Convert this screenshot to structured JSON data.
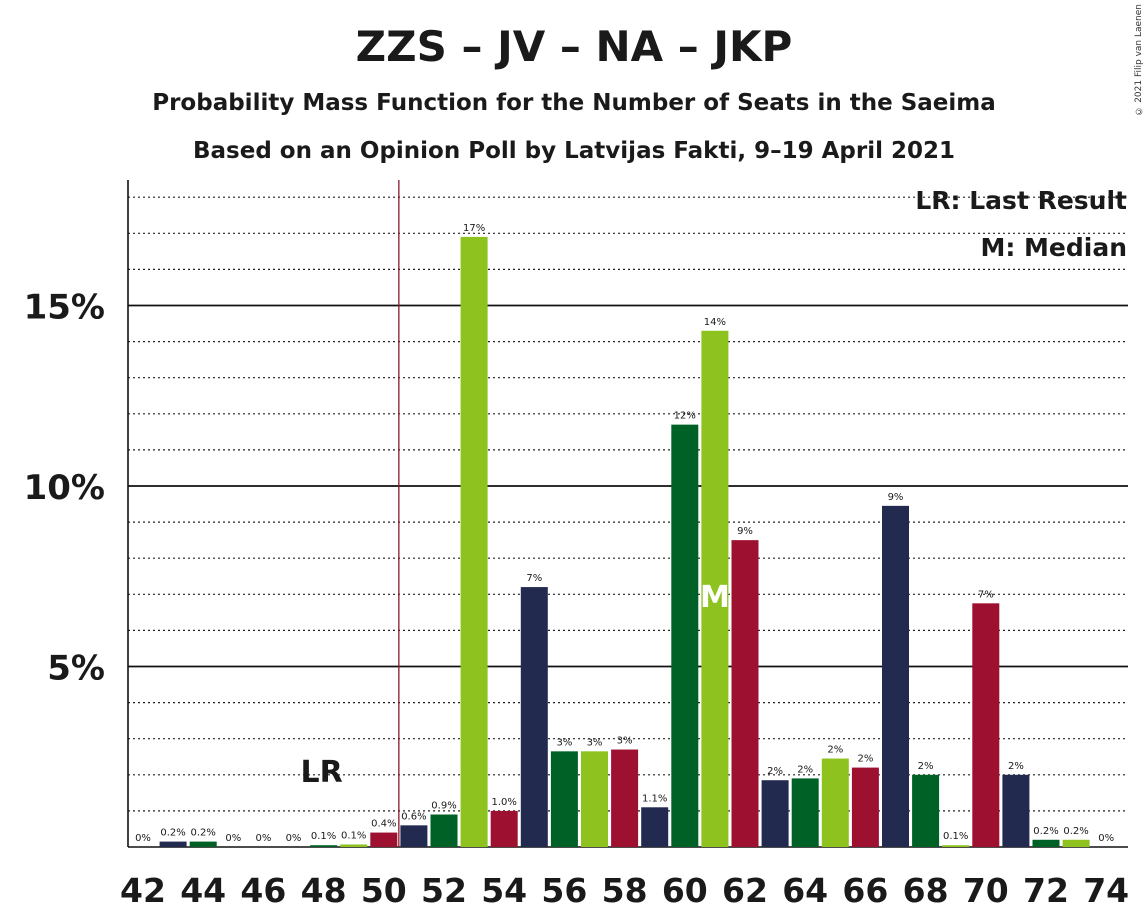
{
  "title": "ZZS – JV – NA – JKP",
  "subtitle": "Probability Mass Function for the Number of Seats in the Saeima",
  "subtitle2": "Based on an Opinion Poll by Latvijas Fakti, 9–19 April 2021",
  "copyright": "© 2021 Filip van Laenen",
  "legend": {
    "lr": "LR: Last Result",
    "m": "M: Median"
  },
  "colors": {
    "jv": "#8dc21f",
    "na": "#9e1030",
    "jkp": "#222a50",
    "zzs": "#006126",
    "lr_line": "#8b1a2a"
  },
  "chart_data": {
    "type": "bar",
    "x": [
      42,
      43,
      44,
      45,
      46,
      47,
      48,
      49,
      50,
      51,
      52,
      53,
      54,
      55,
      56,
      57,
      58,
      59,
      60,
      61,
      62,
      63,
      64,
      65,
      66,
      67,
      68,
      69,
      70,
      71,
      72,
      73,
      74
    ],
    "values": [
      0,
      0.15,
      0.15,
      0,
      0,
      0,
      0.05,
      0.07,
      0.4,
      0.6,
      0.9,
      16.9,
      1.0,
      7.2,
      2.65,
      2.65,
      2.7,
      1.1,
      11.7,
      14.3,
      8.5,
      1.85,
      1.9,
      2.45,
      2.2,
      9.45,
      2.0,
      0.05,
      6.75,
      2.0,
      0.2,
      0.2,
      0
    ],
    "labels": [
      "0%",
      "0.2%",
      "0.2%",
      "0%",
      "0%",
      "0%",
      "0.1%",
      "0.1%",
      "0.4%",
      "0.6%",
      "0.9%",
      "17%",
      "1.0%",
      "7%",
      "3%",
      "3%",
      "3%",
      "1.1%",
      "12%",
      "14%",
      "9%",
      "2%",
      "2%",
      "2%",
      "2%",
      "9%",
      "2%",
      "0.1%",
      "7%",
      "2%",
      "0.2%",
      "0.2%",
      "0%"
    ],
    "colors": [
      "zzs",
      "jkp",
      "zzs",
      "jv",
      "na",
      "jkp",
      "zzs",
      "jv",
      "na",
      "jkp",
      "zzs",
      "jv",
      "na",
      "jkp",
      "zzs",
      "jv",
      "na",
      "jkp",
      "zzs",
      "jv",
      "na",
      "jkp",
      "zzs",
      "jv",
      "na",
      "jkp",
      "zzs",
      "jv",
      "na",
      "jkp",
      "zzs",
      "jv",
      "na"
    ],
    "xticks": [
      "42",
      "44",
      "46",
      "48",
      "50",
      "52",
      "54",
      "56",
      "58",
      "60",
      "62",
      "64",
      "66",
      "68",
      "70",
      "72",
      "74"
    ],
    "yticks": [
      "5%",
      "10%",
      "15%"
    ],
    "ylim": [
      0,
      18.5
    ],
    "last_result": 51,
    "last_result_label": "LR",
    "median": 61,
    "median_label": "M"
  }
}
